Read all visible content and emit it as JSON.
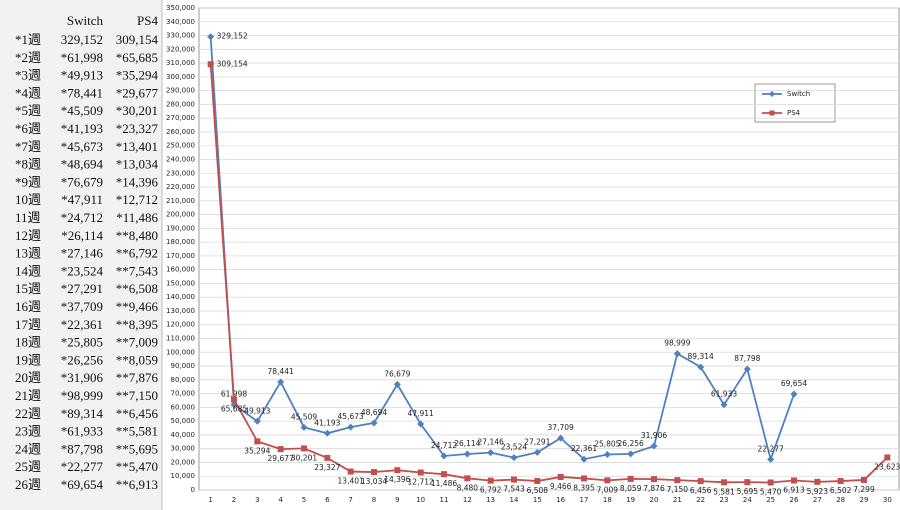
{
  "table": {
    "header": [
      "Switch",
      "PS4"
    ],
    "rows": [
      [
        "*1週",
        "329,152",
        "309,154"
      ],
      [
        "*2週",
        "*61,998",
        "*65,685"
      ],
      [
        "*3週",
        "*49,913",
        "*35,294"
      ],
      [
        "*4週",
        "*78,441",
        "*29,677"
      ],
      [
        "*5週",
        "*45,509",
        "*30,201"
      ],
      [
        "*6週",
        "*41,193",
        "*23,327"
      ],
      [
        "*7週",
        "*45,673",
        "*13,401"
      ],
      [
        "*8週",
        "*48,694",
        "*13,034"
      ],
      [
        "*9週",
        "*76,679",
        "*14,396"
      ],
      [
        "10週",
        "*47,911",
        "*12,712"
      ],
      [
        "11週",
        "*24,712",
        "*11,486"
      ],
      [
        "12週",
        "*26,114",
        "**8,480"
      ],
      [
        "13週",
        "*27,146",
        "**6,792"
      ],
      [
        "14週",
        "*23,524",
        "**7,543"
      ],
      [
        "15週",
        "*27,291",
        "**6,508"
      ],
      [
        "16週",
        "*37,709",
        "**9,466"
      ],
      [
        "17週",
        "*22,361",
        "**8,395"
      ],
      [
        "18週",
        "*25,805",
        "**7,009"
      ],
      [
        "19週",
        "*26,256",
        "**8,059"
      ],
      [
        "20週",
        "*31,906",
        "**7,876"
      ],
      [
        "21週",
        "*98,999",
        "**7,150"
      ],
      [
        "22週",
        "*89,314",
        "**6,456"
      ],
      [
        "23週",
        "*61,933",
        "**5,581"
      ],
      [
        "24週",
        "*87,798",
        "**5,695"
      ],
      [
        "25週",
        "*22,277",
        "**5,470"
      ],
      [
        "26週",
        "*69,654",
        "**6,913"
      ]
    ]
  },
  "chart_data": {
    "type": "line",
    "categories": [
      "1",
      "2",
      "3",
      "4",
      "5",
      "6",
      "7",
      "8",
      "9",
      "10",
      "11",
      "12",
      "13",
      "14",
      "15",
      "16",
      "17",
      "18",
      "19",
      "20",
      "21",
      "22",
      "23",
      "24",
      "25",
      "26",
      "27",
      "28",
      "29",
      "30"
    ],
    "series": [
      {
        "name": "Switch",
        "color": "#4f81bd",
        "marker": "diamond",
        "values": [
          329152,
          61998,
          49913,
          78441,
          45509,
          41193,
          45673,
          48694,
          76679,
          47911,
          24712,
          26114,
          27146,
          23524,
          27291,
          37709,
          22361,
          25805,
          26256,
          31906,
          98999,
          89314,
          61933,
          87798,
          22277,
          69654,
          null,
          null,
          null,
          null
        ],
        "value_labels": [
          "329,152",
          "61,998",
          "49,913",
          "78,441",
          "45,509",
          "41,193",
          "45,673",
          "48,694",
          "76,679",
          "47,911",
          "24,712",
          "26,114",
          "27,146",
          "23,524",
          "27,291",
          "37,709",
          "22,361",
          "25,805",
          "26,256",
          "31,906",
          "98,999",
          "89,314",
          "61,933",
          "87,798",
          "22,277",
          "69,654",
          null,
          null,
          null,
          null
        ]
      },
      {
        "name": "PS4",
        "color": "#c0504d",
        "marker": "square",
        "values": [
          309154,
          65685,
          35294,
          29677,
          30201,
          23327,
          13401,
          13034,
          14396,
          12712,
          11486,
          8480,
          6792,
          7543,
          6508,
          9466,
          8395,
          7009,
          8059,
          7876,
          7150,
          6456,
          5581,
          5695,
          5470,
          6913,
          5923,
          6502,
          7299,
          23623
        ],
        "value_labels": [
          "309,154",
          "65,685",
          "35,294",
          "29,677",
          "30,201",
          "23,327",
          "13,401",
          "13,034",
          "14,396",
          "12,712",
          "11,486",
          "8,480",
          "6,792",
          "7,543",
          "6,508",
          "9,466",
          "8,395",
          "7,009",
          "8,059",
          "7,876",
          "7,150",
          "6,456",
          "5,581",
          "5,695",
          "5,470",
          "6,913",
          "5,923",
          "6,502",
          "7,299",
          "23,623"
        ]
      }
    ],
    "ylim": [
      0,
      350000
    ],
    "yticks": [
      0,
      {
        "value": 10000,
        "label": "10,000"
      },
      {
        "value": 20000,
        "label": "20,000"
      },
      {
        "value": 30000,
        "label": "30,000"
      },
      {
        "value": 40000,
        "label": "40,000"
      },
      {
        "value": 50000,
        "label": "50,000"
      },
      {
        "value": 60000,
        "label": "60,000"
      },
      {
        "value": 70000,
        "label": "70,000"
      },
      {
        "value": 80000,
        "label": "80,000"
      },
      {
        "value": 90000,
        "label": "90,000"
      },
      {
        "value": 100000,
        "label": "100,000"
      },
      {
        "value": 110000,
        "label": "110,000"
      },
      {
        "value": 120000,
        "label": "120,000"
      },
      {
        "value": 130000,
        "label": "130,000"
      },
      {
        "value": 140000,
        "label": "140,000"
      },
      {
        "value": 150000,
        "label": "150,000"
      },
      {
        "value": 160000,
        "label": "160,000"
      },
      {
        "value": 170000,
        "label": "170,000"
      },
      {
        "value": 180000,
        "label": "180,000"
      },
      {
        "value": 190000,
        "label": "190,000"
      },
      {
        "value": 200000,
        "label": "200,000"
      },
      {
        "value": 210000,
        "label": "210,000"
      },
      {
        "value": 220000,
        "label": "220,000"
      },
      {
        "value": 230000,
        "label": "230,000"
      },
      {
        "value": 240000,
        "label": "240,000"
      },
      {
        "value": 250000,
        "label": "250,000"
      },
      {
        "value": 260000,
        "label": "260,000"
      },
      {
        "value": 270000,
        "label": "270,000"
      },
      {
        "value": 280000,
        "label": "280,000"
      },
      {
        "value": 290000,
        "label": "290,000"
      },
      {
        "value": 300000,
        "label": "300,000"
      },
      {
        "value": 310000,
        "label": "310,000"
      },
      {
        "value": 320000,
        "label": "320,000"
      },
      {
        "value": 330000,
        "label": "330,000"
      },
      {
        "value": 340000,
        "label": "340,000"
      },
      {
        "value": 350000,
        "label": "350,000"
      }
    ],
    "grid": true,
    "legend": "upper right"
  }
}
